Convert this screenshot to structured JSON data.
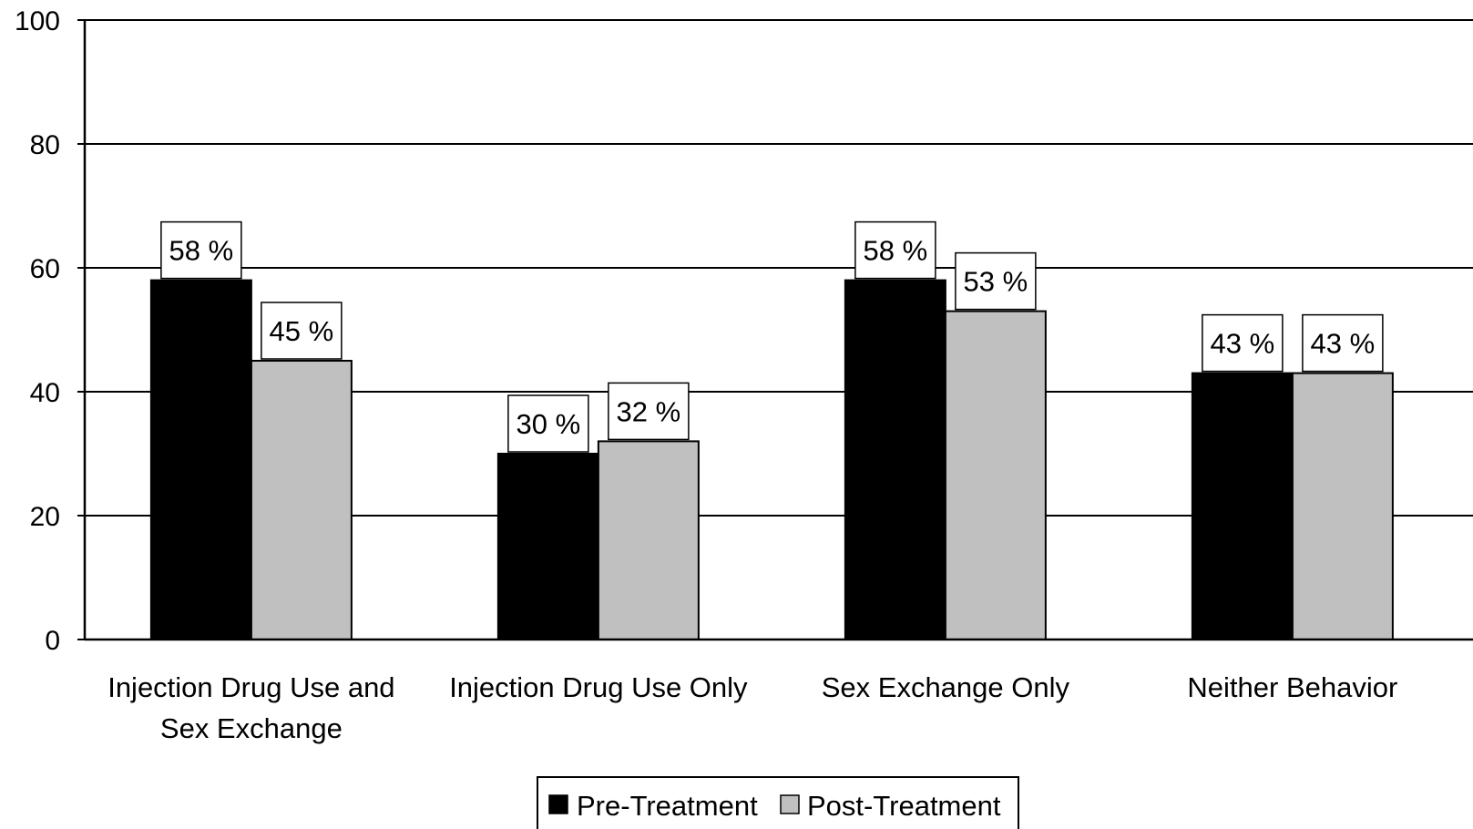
{
  "chart_data": {
    "type": "bar",
    "title": "",
    "xlabel": "",
    "ylabel": "",
    "ylim": [
      0,
      100
    ],
    "yticks": [
      0,
      20,
      40,
      60,
      80,
      100
    ],
    "grid": true,
    "legend_position": "bottom",
    "categories": [
      [
        "Injection Drug Use and",
        "Sex Exchange"
      ],
      [
        "Injection Drug Use Only"
      ],
      [
        "Sex Exchange Only"
      ],
      [
        "Neither Behavior"
      ]
    ],
    "series": [
      {
        "name": "Pre-Treatment",
        "values": [
          58,
          30,
          58,
          43
        ],
        "labels": [
          "58 %",
          "30 %",
          "58 %",
          "43 %"
        ],
        "color": "#000000"
      },
      {
        "name": "Post-Treatment",
        "values": [
          45,
          32,
          53,
          43
        ],
        "labels": [
          "45 %",
          "32 %",
          "53 %",
          "43 %"
        ],
        "color": "#c0c0c0"
      }
    ]
  }
}
